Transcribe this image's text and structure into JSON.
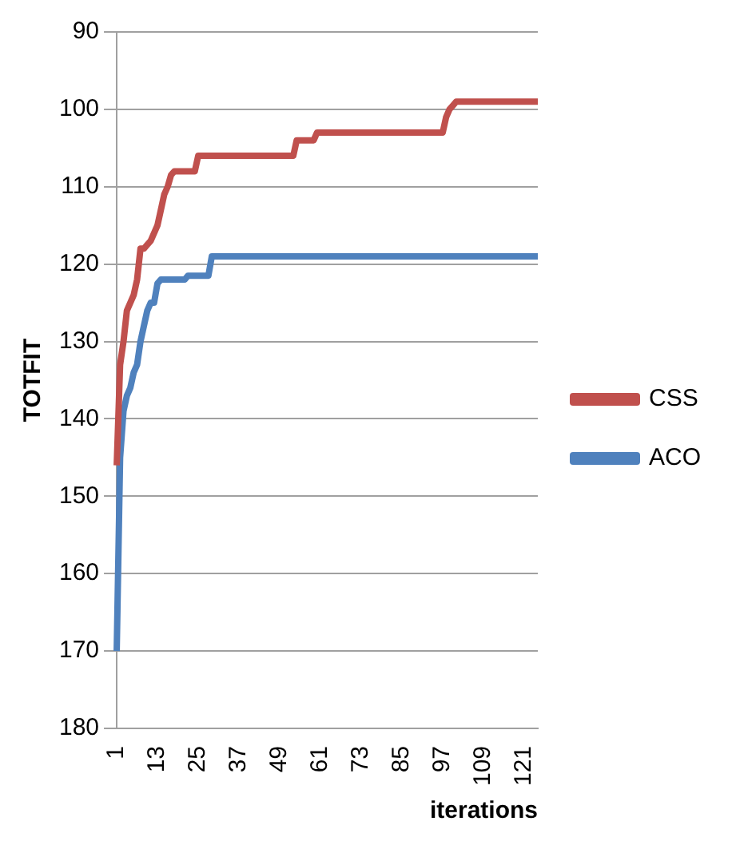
{
  "chart_data": {
    "type": "line",
    "xlabel": "iterations",
    "ylabel": "TOTFIT",
    "categories": [
      "1",
      null,
      null,
      null,
      null,
      null,
      null,
      null,
      null,
      null,
      null,
      null,
      "13",
      null,
      null,
      null,
      null,
      null,
      null,
      null,
      null,
      null,
      null,
      null,
      "25",
      null,
      null,
      null,
      null,
      null,
      null,
      null,
      null,
      null,
      null,
      null,
      "37",
      null,
      null,
      null,
      null,
      null,
      null,
      null,
      null,
      null,
      null,
      null,
      "49",
      null,
      null,
      null,
      null,
      null,
      null,
      null,
      null,
      null,
      null,
      null,
      "61",
      null,
      null,
      null,
      null,
      null,
      null,
      null,
      null,
      null,
      null,
      null,
      "73",
      null,
      null,
      null,
      null,
      null,
      null,
      null,
      null,
      null,
      null,
      null,
      "85",
      null,
      null,
      null,
      null,
      null,
      null,
      null,
      null,
      null,
      null,
      null,
      "97",
      null,
      null,
      null,
      null,
      null,
      null,
      null,
      null,
      null,
      null,
      null,
      "109",
      null,
      null,
      null,
      null,
      null,
      null,
      null,
      null,
      null,
      null,
      null,
      "121",
      null,
      null,
      null,
      null
    ],
    "series": [
      {
        "name": "CSS",
        "color": "#c0504d",
        "values": [
          146,
          133,
          130,
          126,
          125,
          124,
          122,
          118,
          118,
          117.5,
          117,
          116,
          115,
          113,
          111,
          110,
          108.5,
          108,
          108,
          108,
          108,
          108,
          108,
          108,
          106,
          106,
          106,
          106,
          106,
          106,
          106,
          106,
          106,
          106,
          106,
          106,
          106,
          106,
          106,
          106,
          106,
          106,
          106,
          106,
          106,
          106,
          106,
          106,
          106,
          106,
          106,
          106,
          106,
          104,
          104,
          104,
          104,
          104,
          104,
          103,
          103,
          103,
          103,
          103,
          103,
          103,
          103,
          103,
          103,
          103,
          103,
          103,
          103,
          103,
          103,
          103,
          103,
          103,
          103,
          103,
          103,
          103,
          103,
          103,
          103,
          103,
          103,
          103,
          103,
          103,
          103,
          103,
          103,
          103,
          103,
          103,
          103,
          101,
          100,
          99.5,
          99,
          99,
          99,
          99,
          99,
          99,
          99,
          99,
          99,
          99,
          99,
          99,
          99,
          99,
          99,
          99,
          99,
          99,
          99,
          99,
          99,
          99,
          99,
          99,
          99
        ]
      },
      {
        "name": "ACO",
        "color": "#4f81bd",
        "values": [
          170,
          145,
          139,
          137,
          136,
          134,
          133,
          130,
          128,
          126,
          125,
          125,
          122.5,
          122,
          122,
          122,
          122,
          122,
          122,
          122,
          122,
          121.5,
          121.5,
          121.5,
          121.5,
          121.5,
          121.5,
          121.5,
          119,
          119,
          119,
          119,
          119,
          119,
          119,
          119,
          119,
          119,
          119,
          119,
          119,
          119,
          119,
          119,
          119,
          119,
          119,
          119,
          119,
          119,
          119,
          119,
          119,
          119,
          119,
          119,
          119,
          119,
          119,
          119,
          119,
          119,
          119,
          119,
          119,
          119,
          119,
          119,
          119,
          119,
          119,
          119,
          119,
          119,
          119,
          119,
          119,
          119,
          119,
          119,
          119,
          119,
          119,
          119,
          119,
          119,
          119,
          119,
          119,
          119,
          119,
          119,
          119,
          119,
          119,
          119,
          119,
          119,
          119,
          119,
          119,
          119,
          119,
          119,
          119,
          119,
          119,
          119,
          119,
          119,
          119,
          119,
          119,
          119,
          119,
          119,
          119,
          119,
          119,
          119,
          119,
          119,
          119,
          119,
          119
        ]
      }
    ],
    "ylim": [
      180,
      90
    ],
    "yticks": [
      90,
      100,
      110,
      120,
      130,
      140,
      150,
      160,
      170,
      180
    ],
    "grid": "y",
    "legend": "right",
    "marker": "none",
    "line_style": "solid"
  }
}
